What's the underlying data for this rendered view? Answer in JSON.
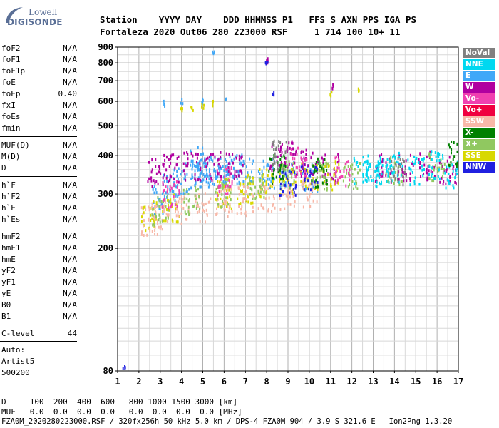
{
  "logo": {
    "line1": "Lowell",
    "line2": "DIGISONDE"
  },
  "header": {
    "labels": "Station    YYYY DAY    DDD HHMMSS P1   FFS S AXN PPS IGA PS",
    "values": "Fortaleza 2020 Out06 280 223000 RSF     1 714 100 10+ 11"
  },
  "params": {
    "group1": [
      {
        "name": "foF2",
        "value": "N/A"
      },
      {
        "name": "foF1",
        "value": "N/A"
      },
      {
        "name": "foF1p",
        "value": "N/A"
      },
      {
        "name": "foE",
        "value": "N/A"
      },
      {
        "name": "foEp",
        "value": "0.40"
      },
      {
        "name": "fxI",
        "value": "N/A"
      },
      {
        "name": "foEs",
        "value": "N/A"
      },
      {
        "name": "fmin",
        "value": "N/A"
      }
    ],
    "group2": [
      {
        "name": "MUF(D)",
        "value": "N/A"
      },
      {
        "name": "M(D)",
        "value": "N/A"
      },
      {
        "name": "D",
        "value": "N/A"
      }
    ],
    "group3": [
      {
        "name": "h`F",
        "value": "N/A"
      },
      {
        "name": "h`F2",
        "value": "N/A"
      },
      {
        "name": "h`E",
        "value": "N/A"
      },
      {
        "name": "h`Es",
        "value": "N/A"
      }
    ],
    "group4": [
      {
        "name": "hmF2",
        "value": "N/A"
      },
      {
        "name": "hmF1",
        "value": "N/A"
      },
      {
        "name": "hmE",
        "value": "N/A"
      },
      {
        "name": "yF2",
        "value": "N/A"
      },
      {
        "name": "yF1",
        "value": "N/A"
      },
      {
        "name": "yE",
        "value": "N/A"
      },
      {
        "name": "B0",
        "value": "N/A"
      },
      {
        "name": "B1",
        "value": "N/A"
      }
    ],
    "group5": [
      {
        "name": "C-level",
        "value": "44"
      }
    ]
  },
  "auto": {
    "line1": "Auto:",
    "line2": "Artist5",
    "line3": "500200"
  },
  "footer": {
    "line1": "D     100  200  400  600   800 1000 1500 3000 [km]",
    "line2": "MUF   0.0  0.0  0.0  0.0   0.0  0.0  0.0  0.0 [MHz]",
    "line3": "FZA0M_2020280223000.RSF / 320fx256h 50 kHz 5.0 km / DPS-4 FZA0M 904 / 3.9 S 321.6 E   Ion2Png 1.3.20"
  },
  "legend": [
    {
      "label": "NoVal",
      "color": "#808080"
    },
    {
      "label": "NNE",
      "color": "#00d8f0"
    },
    {
      "label": "E",
      "color": "#40a8f8"
    },
    {
      "label": "W",
      "color": "#b000a0"
    },
    {
      "label": "Vo-",
      "color": "#f040b0"
    },
    {
      "label": "Vo+",
      "color": "#f00040"
    },
    {
      "label": "SSW",
      "color": "#f8b8a8"
    },
    {
      "label": "X-",
      "color": "#008000"
    },
    {
      "label": "X+",
      "color": "#90c860"
    },
    {
      "label": "SSE",
      "color": "#d8d800"
    },
    {
      "label": "NNW",
      "color": "#2020e0"
    }
  ],
  "chart_data": {
    "type": "scatter",
    "xlim": [
      1,
      17
    ],
    "ylim": [
      80,
      900
    ],
    "x_ticks": [
      "1",
      "2",
      "3",
      "4",
      "5",
      "6",
      "7",
      "8",
      "9",
      "10",
      "11",
      "12",
      "13",
      "14",
      "15",
      "16",
      "17"
    ],
    "y_ticks": [
      "80",
      "200",
      "300",
      "400",
      "500",
      "600",
      "700",
      "800",
      "900"
    ],
    "y_tick_values": [
      80,
      200,
      300,
      400,
      500,
      600,
      700,
      800,
      900
    ],
    "y_scale": "log",
    "grid": true,
    "series": [
      {
        "name": "E",
        "color": "#40a8f8",
        "points": [
          [
            3.0,
            285
          ],
          [
            3.5,
            310
          ],
          [
            4.0,
            330
          ],
          [
            4.5,
            345
          ],
          [
            5.0,
            350
          ],
          [
            5.5,
            355
          ],
          [
            6.0,
            355
          ],
          [
            6.5,
            360
          ],
          [
            7.0,
            360
          ],
          [
            8.0,
            350
          ],
          [
            9.0,
            345
          ],
          [
            10.0,
            340
          ],
          [
            3.2,
            590
          ],
          [
            4.0,
            600
          ],
          [
            5.0,
            600
          ],
          [
            5.5,
            860
          ],
          [
            6.1,
            600
          ],
          [
            4.8,
            385
          ]
        ]
      },
      {
        "name": "W",
        "color": "#b000a0",
        "points": [
          [
            2.8,
            350
          ],
          [
            3.5,
            365
          ],
          [
            4.5,
            370
          ],
          [
            5.5,
            370
          ],
          [
            6.5,
            375
          ],
          [
            8.5,
            395
          ],
          [
            9.0,
            400
          ],
          [
            10.0,
            380
          ],
          [
            11.0,
            365
          ],
          [
            13.5,
            365
          ],
          [
            14.5,
            360
          ],
          [
            15.5,
            370
          ],
          [
            16.5,
            360
          ],
          [
            8.0,
            810
          ],
          [
            11.1,
            670
          ]
        ]
      },
      {
        "name": "SSE",
        "color": "#d8d800",
        "points": [
          [
            2.5,
            255
          ],
          [
            3.5,
            270
          ],
          [
            4.0,
            560
          ],
          [
            4.5,
            565
          ],
          [
            5.0,
            575
          ],
          [
            5.5,
            590
          ],
          [
            6.0,
            300
          ],
          [
            7.0,
            310
          ],
          [
            8.0,
            325
          ],
          [
            9.0,
            335
          ],
          [
            10.0,
            345
          ],
          [
            11.0,
            345
          ],
          [
            12.3,
            650
          ],
          [
            11.0,
            635
          ]
        ]
      },
      {
        "name": "SSW",
        "color": "#f8b8a8",
        "points": [
          [
            2.5,
            245
          ],
          [
            3.0,
            255
          ],
          [
            4.0,
            265
          ],
          [
            5.0,
            270
          ],
          [
            6.0,
            280
          ],
          [
            7.0,
            285
          ],
          [
            8.0,
            290
          ],
          [
            9.0,
            295
          ],
          [
            10.0,
            300
          ]
        ]
      },
      {
        "name": "X+",
        "color": "#90c860",
        "points": [
          [
            3.0,
            265
          ],
          [
            4.5,
            285
          ],
          [
            6.0,
            300
          ],
          [
            7.5,
            320
          ],
          [
            9.0,
            345
          ],
          [
            10.5,
            340
          ],
          [
            12.0,
            345
          ],
          [
            14.0,
            355
          ],
          [
            16.0,
            365
          ]
        ]
      },
      {
        "name": "NNW",
        "color": "#2020e0",
        "points": [
          [
            8.0,
            800
          ],
          [
            8.3,
            635
          ],
          [
            1.3,
            82
          ],
          [
            9.0,
            330
          ],
          [
            10.0,
            340
          ]
        ]
      },
      {
        "name": "NNE",
        "color": "#00d8f0",
        "points": [
          [
            12.5,
            360
          ],
          [
            13.0,
            355
          ],
          [
            13.5,
            350
          ],
          [
            14.0,
            365
          ],
          [
            15.0,
            355
          ],
          [
            16.0,
            370
          ],
          [
            16.8,
            350
          ]
        ]
      },
      {
        "name": "Vo-",
        "color": "#f040b0",
        "points": [
          [
            3.5,
            300
          ],
          [
            6.0,
            330
          ],
          [
            9.5,
            380
          ],
          [
            11.5,
            355
          ]
        ]
      },
      {
        "name": "X-",
        "color": "#008000",
        "points": [
          [
            8.5,
            360
          ],
          [
            10.5,
            350
          ],
          [
            16.9,
            410
          ]
        ]
      },
      {
        "name": "NoVal",
        "color": "#808080",
        "points": [
          [
            8.7,
            400
          ],
          [
            14.2,
            355
          ]
        ]
      }
    ]
  }
}
